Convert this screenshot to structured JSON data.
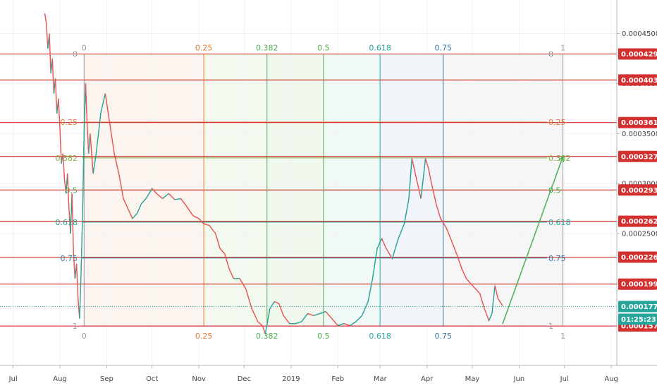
{
  "chart_data": {
    "type": "line",
    "title": "",
    "xlabel": "",
    "ylabel": "",
    "ylim": [
      0.000145,
      0.000475
    ],
    "x_range": [
      "2018-07-01",
      "2019-08-01"
    ],
    "grid": true,
    "price_ticks": [
      "0.00045000",
      "0.00040000",
      "0.00035000",
      "0.00030000",
      "0.00025000",
      "0.00020000"
    ],
    "price_tick_values": [
      0.00045,
      0.0004,
      0.00035,
      0.0003,
      0.00025,
      0.0002
    ],
    "x_ticks": [
      {
        "label": "Jul",
        "date": "2018-07-01"
      },
      {
        "label": "Aug",
        "date": "2018-08-01"
      },
      {
        "label": "Sep",
        "date": "2018-09-01"
      },
      {
        "label": "Oct",
        "date": "2018-10-01"
      },
      {
        "label": "Nov",
        "date": "2018-11-01"
      },
      {
        "label": "Dec",
        "date": "2018-12-01"
      },
      {
        "label": "2019",
        "date": "2019-01-01"
      },
      {
        "label": "Feb",
        "date": "2019-02-01"
      },
      {
        "label": "Mar",
        "date": "2019-03-01"
      },
      {
        "label": "Apr",
        "date": "2019-04-01"
      },
      {
        "label": "May",
        "date": "2019-05-01"
      },
      {
        "label": "Jun",
        "date": "2019-06-01"
      },
      {
        "label": "Jul",
        "date": "2019-07-01"
      },
      {
        "label": "Aug",
        "date": "2019-08-01"
      }
    ],
    "horizontal_levels": [
      {
        "label": "0.00042952",
        "value": 0.00042952
      },
      {
        "label": "0.00040353",
        "value": 0.00040353
      },
      {
        "label": "0.00036100",
        "value": 0.000361
      },
      {
        "label": "0.00032709",
        "value": 0.00032709
      },
      {
        "label": "0.00029359",
        "value": 0.00029359
      },
      {
        "label": "0.00026234",
        "value": 0.00026234
      },
      {
        "label": "0.00022641",
        "value": 0.00022641
      },
      {
        "label": "0.00019951",
        "value": 0.00019951
      },
      {
        "label": "0.00015756",
        "value": 0.00015756
      }
    ],
    "current_price": {
      "label": "0.00017711",
      "value": 0.00017711
    },
    "countdown": "01:25:23",
    "fib_time_zones": {
      "start_date": "2018-08-17",
      "end_date": "2019-06-30",
      "levels": [
        {
          "label": "0",
          "ratio": 0,
          "color": "#999999"
        },
        {
          "label": "0.25",
          "ratio": 0.25,
          "color": "#e07b39"
        },
        {
          "label": "0.382",
          "ratio": 0.382,
          "color": "#4caf50"
        },
        {
          "label": "0.5",
          "ratio": 0.5,
          "color": "#4caf50"
        },
        {
          "label": "0.618",
          "ratio": 0.618,
          "color": "#26a69a"
        },
        {
          "label": "0.75",
          "ratio": 0.75,
          "color": "#3c78a8"
        },
        {
          "label": "1",
          "ratio": 1,
          "color": "#999999"
        }
      ]
    },
    "fib_retracement": {
      "high": 0.00042952,
      "low": 0.00015756,
      "levels": [
        {
          "label": "0",
          "ratio": 0,
          "color": "#999999"
        },
        {
          "label": "0.25",
          "ratio": 0.25,
          "color": "#e07b39"
        },
        {
          "label": "0.382",
          "ratio": 0.382,
          "color": "#7cb342"
        },
        {
          "label": "0.5",
          "ratio": 0.5,
          "color": "#4caf50"
        },
        {
          "label": "0.618",
          "ratio": 0.618,
          "color": "#26a69a"
        },
        {
          "label": "0.75",
          "ratio": 0.75,
          "color": "#3c78a8"
        },
        {
          "label": "1",
          "ratio": 1,
          "color": "#999999"
        }
      ]
    },
    "projection_arrow": {
      "from": {
        "date": "2019-05-21",
        "value": 0.0001595
      },
      "to": {
        "date": "2019-06-30",
        "value": 0.00032709
      },
      "color": "#4caf50"
    },
    "series": [
      {
        "values": [
          [
            "2018-07-22",
            0.00047
          ],
          [
            "2018-07-23",
            0.00046
          ],
          [
            "2018-07-24",
            0.000435
          ],
          [
            "2018-07-25",
            0.00045
          ],
          [
            "2018-07-26",
            0.00041
          ],
          [
            "2018-07-27",
            0.000425
          ],
          [
            "2018-07-28",
            0.00039
          ],
          [
            "2018-07-29",
            0.000405
          ],
          [
            "2018-07-30",
            0.00037
          ],
          [
            "2018-07-31",
            0.000385
          ],
          [
            "2018-08-01",
            0.000355
          ],
          [
            "2018-08-02",
            0.00032
          ],
          [
            "2018-08-03",
            0.00033
          ],
          [
            "2018-08-04",
            0.000305
          ],
          [
            "2018-08-05",
            0.00029
          ],
          [
            "2018-08-06",
            0.00031
          ],
          [
            "2018-08-07",
            0.000275
          ],
          [
            "2018-08-08",
            0.00025
          ],
          [
            "2018-08-09",
            0.00029
          ],
          [
            "2018-08-10",
            0.00023
          ],
          [
            "2018-08-11",
            0.000205
          ],
          [
            "2018-08-12",
            0.00022
          ],
          [
            "2018-08-13",
            0.000185
          ],
          [
            "2018-08-14",
            0.000165
          ],
          [
            "2018-08-15",
            0.00021
          ],
          [
            "2018-08-16",
            0.00027
          ],
          [
            "2018-08-17",
            0.00035
          ],
          [
            "2018-08-18",
            0.0004
          ],
          [
            "2018-08-19",
            0.00036
          ],
          [
            "2018-08-20",
            0.00033
          ],
          [
            "2018-08-21",
            0.00035
          ],
          [
            "2018-08-23",
            0.00031
          ],
          [
            "2018-08-25",
            0.00033
          ],
          [
            "2018-08-28",
            0.00037
          ],
          [
            "2018-08-31",
            0.00039
          ],
          [
            "2018-09-03",
            0.00036
          ],
          [
            "2018-09-06",
            0.00033
          ],
          [
            "2018-09-09",
            0.00031
          ],
          [
            "2018-09-12",
            0.000285
          ],
          [
            "2018-09-15",
            0.000275
          ],
          [
            "2018-09-18",
            0.000265
          ],
          [
            "2018-09-21",
            0.00027
          ],
          [
            "2018-09-24",
            0.00028
          ],
          [
            "2018-09-27",
            0.000285
          ],
          [
            "2018-10-01",
            0.000295
          ],
          [
            "2018-10-04",
            0.00029
          ],
          [
            "2018-10-08",
            0.000285
          ],
          [
            "2018-10-12",
            0.00029
          ],
          [
            "2018-10-16",
            0.000284
          ],
          [
            "2018-10-20",
            0.000285
          ],
          [
            "2018-10-24",
            0.000277
          ],
          [
            "2018-10-28",
            0.000268
          ],
          [
            "2018-11-01",
            0.000265
          ],
          [
            "2018-11-04",
            0.00026
          ],
          [
            "2018-11-08",
            0.000258
          ],
          [
            "2018-11-12",
            0.00025
          ],
          [
            "2018-11-15",
            0.000235
          ],
          [
            "2018-11-18",
            0.00023
          ],
          [
            "2018-11-21",
            0.000215
          ],
          [
            "2018-11-24",
            0.000205
          ],
          [
            "2018-11-28",
            0.000205
          ],
          [
            "2018-12-02",
            0.000195
          ],
          [
            "2018-12-06",
            0.000175
          ],
          [
            "2018-12-10",
            0.000162
          ],
          [
            "2018-12-13",
            0.000158
          ],
          [
            "2018-12-15",
            0.00015
          ],
          [
            "2018-12-18",
            0.000175
          ],
          [
            "2018-12-21",
            0.000182
          ],
          [
            "2018-12-24",
            0.00018
          ],
          [
            "2018-12-27",
            0.000168
          ],
          [
            "2018-12-31",
            0.00016
          ],
          [
            "2019-01-04",
            0.00016
          ],
          [
            "2019-01-08",
            0.000162
          ],
          [
            "2019-01-12",
            0.00017
          ],
          [
            "2019-01-16",
            0.000168
          ],
          [
            "2019-01-20",
            0.00017
          ],
          [
            "2019-01-24",
            0.000172
          ],
          [
            "2019-01-28",
            0.000165
          ],
          [
            "2019-02-01",
            0.000158
          ],
          [
            "2019-02-05",
            0.00016
          ],
          [
            "2019-02-09",
            0.000158
          ],
          [
            "2019-02-13",
            0.000162
          ],
          [
            "2019-02-17",
            0.000168
          ],
          [
            "2019-02-21",
            0.000182
          ],
          [
            "2019-02-24",
            0.000205
          ],
          [
            "2019-02-27",
            0.000235
          ],
          [
            "2019-03-02",
            0.000245
          ],
          [
            "2019-03-05",
            0.000235
          ],
          [
            "2019-03-09",
            0.000225
          ],
          [
            "2019-03-13",
            0.000245
          ],
          [
            "2019-03-17",
            0.00026
          ],
          [
            "2019-03-20",
            0.000285
          ],
          [
            "2019-03-22",
            0.000325
          ],
          [
            "2019-03-25",
            0.000305
          ],
          [
            "2019-03-28",
            0.000285
          ],
          [
            "2019-03-31",
            0.000325
          ],
          [
            "2019-04-02",
            0.000315
          ],
          [
            "2019-04-04",
            0.0003
          ],
          [
            "2019-04-07",
            0.00028
          ],
          [
            "2019-04-10",
            0.000265
          ],
          [
            "2019-04-14",
            0.000255
          ],
          [
            "2019-04-18",
            0.00024
          ],
          [
            "2019-04-21",
            0.000228
          ],
          [
            "2019-04-24",
            0.000215
          ],
          [
            "2019-04-27",
            0.000205
          ],
          [
            "2019-04-30",
            0.0002
          ],
          [
            "2019-05-03",
            0.000195
          ],
          [
            "2019-05-06",
            0.00019
          ],
          [
            "2019-05-09",
            0.000175
          ],
          [
            "2019-05-12",
            0.000163
          ],
          [
            "2019-05-14",
            0.00017
          ],
          [
            "2019-05-16",
            0.000198
          ],
          [
            "2019-05-18",
            0.000185
          ],
          [
            "2019-05-21",
            0.000178
          ]
        ]
      }
    ]
  }
}
